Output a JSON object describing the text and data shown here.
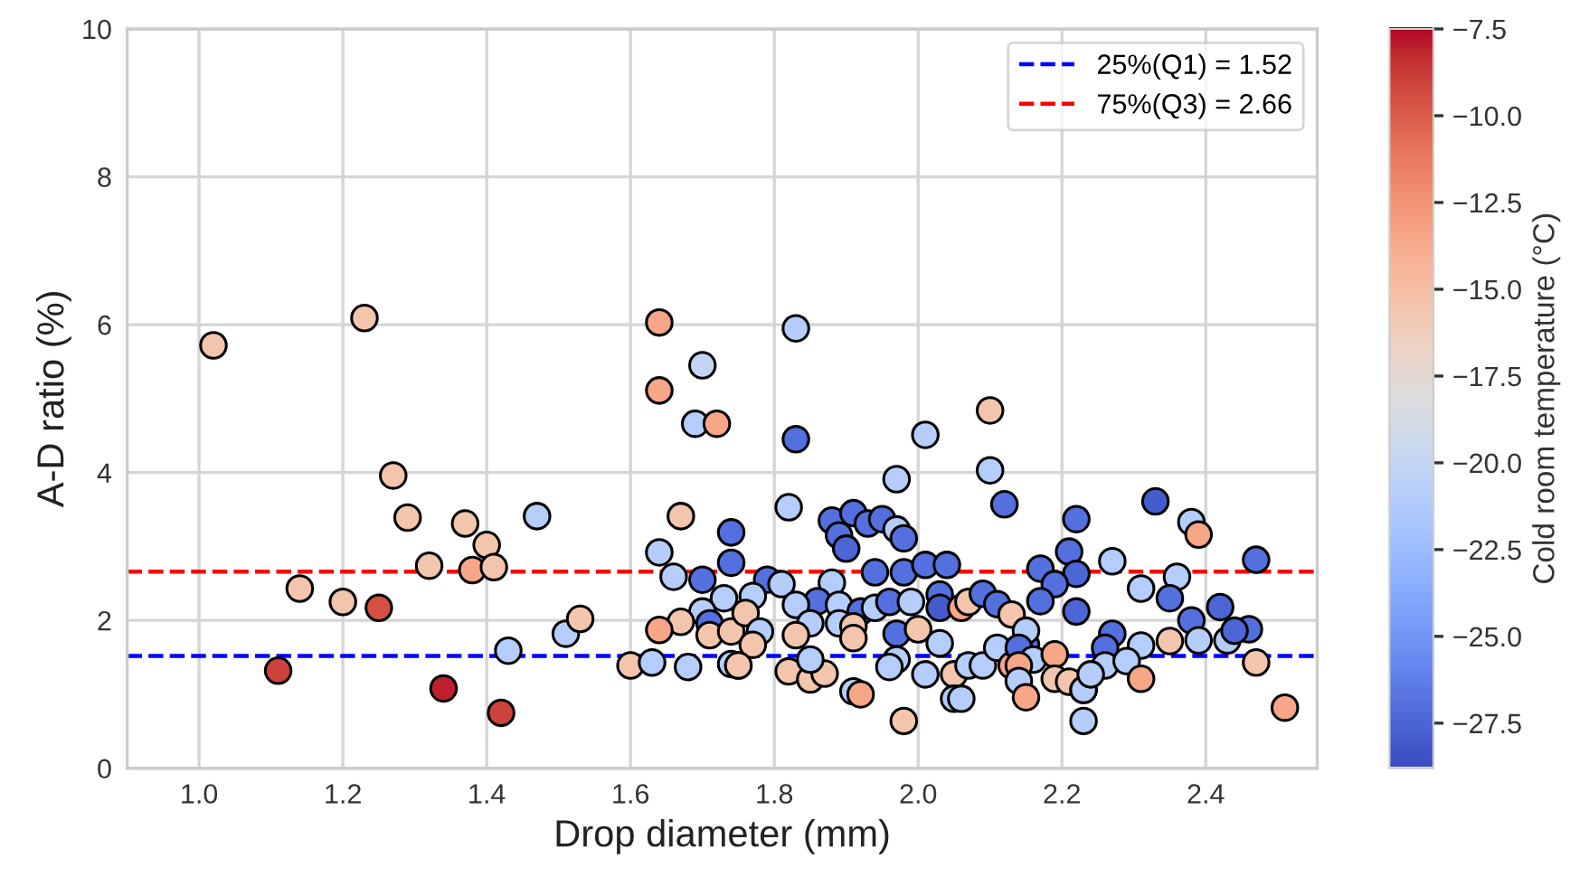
{
  "chart_data": {
    "type": "scatter",
    "xlabel": "Drop diameter (mm)",
    "ylabel": "A-D ratio (%)",
    "clabel": "Cold room temperature (°C)",
    "marker": "circle",
    "grid": true,
    "legend": "top right",
    "xlim": [
      0.9,
      2.555
    ],
    "ylim": [
      0,
      10
    ],
    "xticks": [
      {
        "value": 1.0,
        "label": "1.0"
      },
      {
        "value": 1.2,
        "label": "1.2"
      },
      {
        "value": 1.4,
        "label": "1.4"
      },
      {
        "value": 1.6,
        "label": "1.6"
      },
      {
        "value": 1.8,
        "label": "1.8"
      },
      {
        "value": 2.0,
        "label": "2.0"
      },
      {
        "value": 2.2,
        "label": "2.2"
      },
      {
        "value": 2.4,
        "label": "2.4"
      }
    ],
    "yticks": [
      0,
      2,
      4,
      6,
      8,
      10
    ],
    "clim": [
      -28.8,
      -7.5
    ],
    "cticks": [
      {
        "value": -7.5,
        "label": "−7.5"
      },
      {
        "value": -10,
        "label": "−10.0"
      },
      {
        "value": -12.5,
        "label": "−12.5"
      },
      {
        "value": -15,
        "label": "−15.0"
      },
      {
        "value": -17.5,
        "label": "−17.5"
      },
      {
        "value": -20,
        "label": "−20.0"
      },
      {
        "value": -22.5,
        "label": "−22.5"
      },
      {
        "value": -25,
        "label": "−25.0"
      },
      {
        "value": -27.5,
        "label": "−27.5"
      }
    ],
    "ref_lines": [
      {
        "axis": "y",
        "value": 1.52,
        "label": "25%(Q1) = 1.52",
        "color": "#0000ff",
        "line_style": "dashed"
      },
      {
        "axis": "y",
        "value": 2.66,
        "label": "75%(Q3) = 2.66",
        "color": "#ff0000",
        "line_style": "dashed"
      }
    ],
    "x": [
      1.02,
      1.23,
      1.27,
      1.29,
      1.37,
      1.4,
      1.32,
      1.38,
      1.41,
      1.14,
      1.2,
      1.25,
      1.11,
      1.34,
      1.42,
      1.47,
      1.43,
      1.51,
      1.53,
      1.6,
      1.63,
      1.68,
      1.64,
      1.64,
      1.7,
      1.69,
      1.72,
      1.67,
      1.64,
      1.66,
      1.7,
      1.74,
      1.74,
      1.73,
      1.7,
      1.71,
      1.67,
      1.64,
      1.71,
      1.74,
      1.74,
      1.75,
      1.83,
      1.83,
      1.82,
      2.01,
      2.1,
      2.1,
      2.12,
      1.97,
      1.88,
      1.91,
      1.89,
      1.9,
      1.93,
      1.95,
      1.97,
      1.98,
      1.94,
      1.98,
      2.01,
      2.04,
      1.79,
      1.81,
      1.88,
      1.86,
      1.83,
      1.89,
      1.92,
      1.94,
      1.96,
      1.99,
      2.03,
      2.03,
      2.06,
      2.07,
      2.09,
      2.11,
      2.13,
      1.77,
      1.76,
      1.78,
      1.77,
      1.75,
      1.85,
      1.83,
      1.82,
      1.85,
      1.87,
      1.85,
      1.89,
      1.91,
      1.91,
      1.97,
      1.97,
      1.96,
      2.0,
      2.03,
      2.01,
      2.05,
      2.07,
      2.09,
      2.11,
      2.13,
      1.91,
      1.92,
      1.98,
      2.05,
      2.06,
      2.15,
      2.33,
      2.38,
      2.39,
      2.22,
      2.21,
      2.22,
      2.27,
      2.47,
      2.17,
      2.19,
      2.17,
      2.22,
      2.31,
      2.36,
      2.35,
      2.38,
      2.42,
      2.27,
      2.26,
      2.31,
      2.35,
      2.39,
      2.43,
      2.46,
      2.44,
      2.15,
      2.14,
      2.16,
      2.19,
      2.14,
      2.14,
      2.15,
      2.19,
      2.21,
      2.23,
      2.23,
      2.26,
      2.24,
      2.29,
      2.31,
      2.23,
      2.47,
      2.51
    ],
    "values": [
      5.72,
      6.09,
      3.96,
      3.39,
      3.31,
      3.02,
      2.74,
      2.68,
      2.72,
      2.43,
      2.25,
      2.17,
      1.32,
      1.08,
      0.75,
      3.41,
      1.59,
      1.82,
      2.02,
      1.39,
      1.43,
      1.37,
      6.03,
      5.11,
      5.45,
      4.66,
      4.66,
      3.41,
      2.92,
      2.59,
      2.55,
      3.19,
      2.78,
      2.3,
      2.12,
      1.96,
      1.98,
      1.87,
      1.8,
      1.85,
      1.41,
      1.39,
      5.95,
      4.45,
      3.53,
      4.51,
      4.84,
      4.03,
      3.57,
      3.91,
      3.35,
      3.45,
      3.15,
      2.97,
      3.31,
      3.37,
      3.23,
      3.11,
      2.65,
      2.65,
      2.75,
      2.75,
      2.55,
      2.49,
      2.51,
      2.26,
      2.21,
      2.21,
      2.12,
      2.17,
      2.25,
      2.25,
      2.35,
      2.17,
      2.17,
      2.25,
      2.36,
      2.22,
      2.08,
      2.33,
      2.1,
      1.85,
      1.67,
      1.39,
      1.96,
      1.8,
      1.31,
      1.2,
      1.28,
      1.47,
      1.96,
      1.92,
      1.76,
      1.82,
      1.47,
      1.37,
      1.88,
      1.69,
      1.27,
      1.27,
      1.39,
      1.39,
      1.63,
      1.39,
      1.04,
      1.0,
      0.64,
      0.94,
      0.94,
      1.67,
      3.61,
      3.33,
      3.16,
      3.37,
      2.93,
      2.63,
      2.8,
      2.82,
      2.7,
      2.49,
      2.26,
      2.12,
      2.43,
      2.59,
      2.3,
      2.0,
      2.18,
      1.82,
      1.63,
      1.66,
      1.72,
      1.73,
      1.73,
      1.88,
      1.86,
      1.86,
      1.63,
      1.47,
      1.54,
      1.39,
      1.18,
      0.96,
      1.21,
      1.17,
      1.06,
      1.06,
      1.39,
      1.27,
      1.45,
      1.21,
      0.64,
      1.43,
      0.82
    ],
    "cvalues": [
      -15.5,
      -15.5,
      -15.5,
      -15.5,
      -15.5,
      -15.5,
      -15.5,
      -13.5,
      -15.5,
      -15.5,
      -15.5,
      -9.5,
      -9,
      -8,
      -9,
      -21,
      -21,
      -21,
      -15.5,
      -15.5,
      -21,
      -21,
      -13.5,
      -13.5,
      -20,
      -21,
      -13.5,
      -15.5,
      -21,
      -21,
      -27,
      -27,
      -27,
      -21,
      -21,
      -27,
      -15.5,
      -13.5,
      -15.5,
      -15.5,
      -21,
      -15.5,
      -21,
      -27,
      -21,
      -21,
      -15.5,
      -21,
      -27,
      -21,
      -27,
      -27,
      -27,
      -27.5,
      -27,
      -27,
      -21,
      -27,
      -27,
      -27,
      -27,
      -27,
      -27,
      -21,
      -21,
      -27,
      -21,
      -21,
      -27,
      -21,
      -27,
      -21,
      -27,
      -28,
      -13.5,
      -15.5,
      -27,
      -27,
      -15.5,
      -21,
      -15.5,
      -21,
      -15.5,
      -15.5,
      -21,
      -15.5,
      -15.5,
      -15.5,
      -15.5,
      -21,
      -21,
      -15.5,
      -15.5,
      -27,
      -21,
      -21,
      -15.5,
      -21,
      -21,
      -15.5,
      -21,
      -21,
      -21,
      -13.5,
      -21,
      -13.5,
      -15.5,
      -21,
      -21,
      -27,
      -28,
      -21,
      -13.5,
      -27,
      -27,
      -27.5,
      -21,
      -27,
      -27,
      -27,
      -27,
      -27.5,
      -21,
      -21,
      -27,
      -27,
      -27.5,
      -27,
      -27,
      -21,
      -15.5,
      -21,
      -21,
      -27,
      -27.5,
      -21,
      -27,
      -21,
      -13.5,
      -13.5,
      -21,
      -13.5,
      -15.5,
      -15.5,
      -15.5,
      -21,
      -21,
      -21,
      -21,
      -13.5,
      -21,
      -15.5,
      -13.5
    ]
  }
}
